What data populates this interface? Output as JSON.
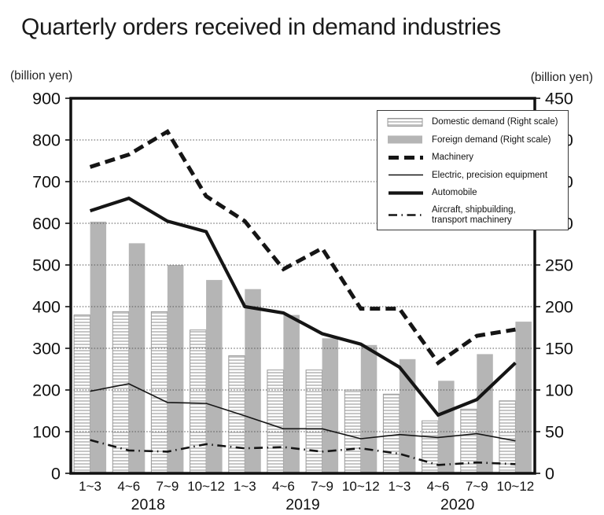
{
  "title": "Quarterly orders received in demand industries",
  "left_axis_unit": "(billion yen)",
  "right_axis_unit": "(billion yen)",
  "colors": {
    "line_black": "#151515",
    "foreign_bar_gray": "#b5b5b5",
    "domestic_bar_stripe": "#c6c6c6",
    "bar_border": "#999999",
    "grid_gray": "#555555"
  },
  "legend": {
    "items": [
      {
        "label": "Domestic demand  (Right scale)",
        "style": "striped-bar"
      },
      {
        "label": "Foreign demand  (Right scale)",
        "style": "solid-bar"
      },
      {
        "label": "Machinery",
        "style": "thick-dashed"
      },
      {
        "label": "Electric, precision equipment",
        "style": "thin-solid"
      },
      {
        "label": "Automobile",
        "style": "thick-solid"
      },
      {
        "label": "Aircraft, shipbuilding,\ntransport machinery",
        "style": "dash-dot"
      }
    ]
  },
  "chart_data": {
    "type": "bar+line",
    "title": "Quarterly orders received in demand industries",
    "xlabel": "",
    "ylabel_left": "(billion yen)",
    "ylabel_right": "(billion yen)",
    "grid": "horizontal-dotted",
    "legend_position": "top-right-inside",
    "categories": [
      "1~3",
      "4~6",
      "7~9",
      "10~12",
      "1~3",
      "4~6",
      "7~9",
      "10~12",
      "1~3",
      "4~6",
      "7~9",
      "10~12"
    ],
    "year_groups": [
      {
        "label": "2018",
        "start": 0,
        "end": 3
      },
      {
        "label": "2019",
        "start": 4,
        "end": 7
      },
      {
        "label": "2020",
        "start": 8,
        "end": 11
      }
    ],
    "left_axis": {
      "min": 0,
      "max": 900,
      "ticks": [
        0,
        100,
        200,
        300,
        400,
        500,
        600,
        700,
        800,
        900
      ]
    },
    "right_axis": {
      "min": 0,
      "max": 450,
      "ticks": [
        0,
        50,
        100,
        150,
        200,
        250,
        300,
        350,
        400,
        450
      ]
    },
    "bar_series": [
      {
        "name": "Domestic demand (Right scale)",
        "axis": "right",
        "style": "striped",
        "values": [
          190,
          194,
          194,
          172,
          141,
          124,
          124,
          100,
          95,
          63,
          77,
          87
        ]
      },
      {
        "name": "Foreign demand (Right scale)",
        "axis": "right",
        "style": "solid-gray",
        "values": [
          302,
          276,
          250,
          232,
          221,
          190,
          162,
          154,
          137,
          111,
          143,
          182
        ]
      }
    ],
    "line_series": [
      {
        "name": "Machinery",
        "axis": "left",
        "style": "thick-dashed",
        "values": [
          735,
          765,
          820,
          665,
          605,
          490,
          540,
          395,
          395,
          265,
          330,
          345
        ]
      },
      {
        "name": "Electric, precision equipment",
        "axis": "left",
        "style": "thin-solid",
        "values": [
          197,
          215,
          170,
          168,
          138,
          107,
          107,
          83,
          93,
          86,
          95,
          78
        ]
      },
      {
        "name": "Automobile",
        "axis": "left",
        "style": "thick-solid",
        "values": [
          630,
          660,
          605,
          580,
          400,
          385,
          335,
          310,
          255,
          140,
          177,
          265
        ]
      },
      {
        "name": "Aircraft, shipbuilding, transport machinery",
        "axis": "left",
        "style": "dash-dot",
        "values": [
          80,
          55,
          52,
          70,
          60,
          63,
          52,
          60,
          47,
          20,
          26,
          22
        ]
      }
    ]
  }
}
